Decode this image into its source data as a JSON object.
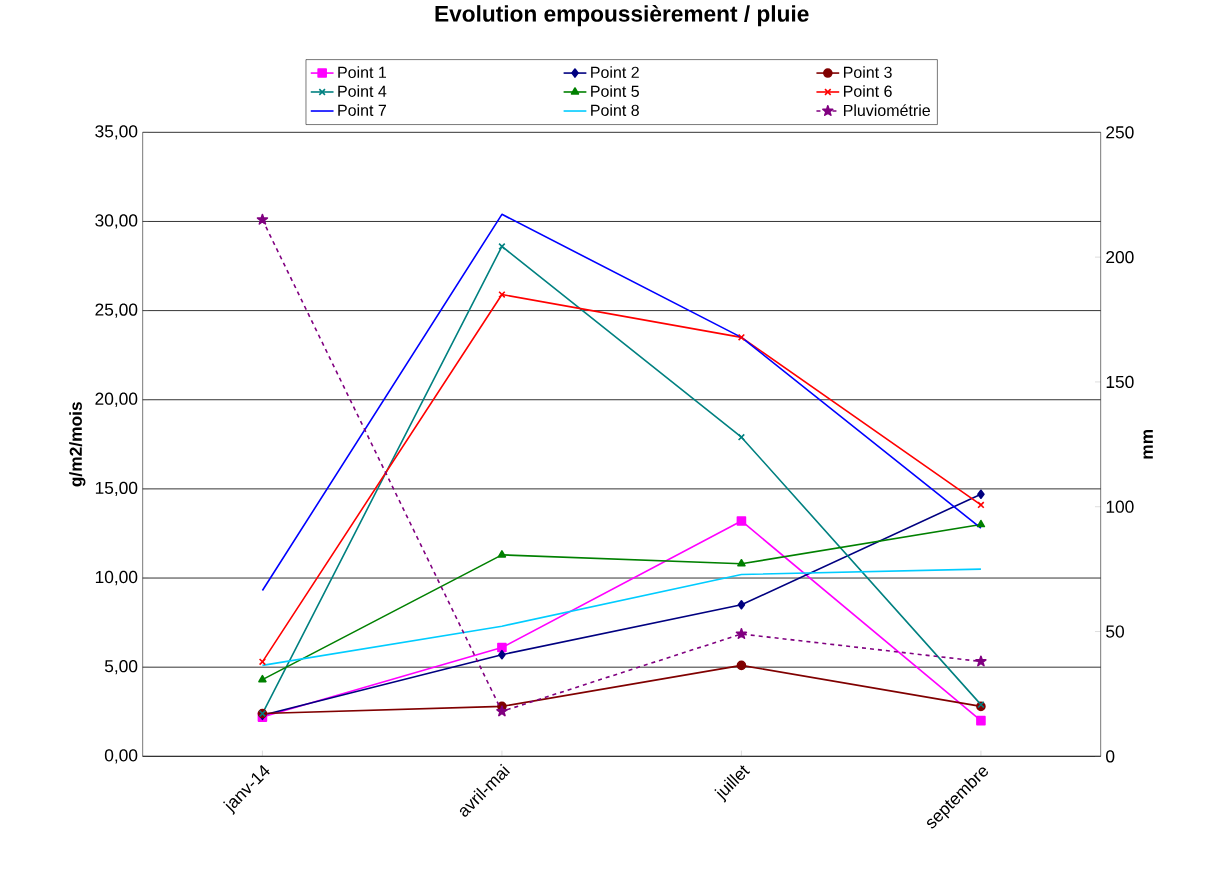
{
  "chart_data": {
    "type": "line",
    "title": "Evolution empoussièrement / pluie",
    "ylabel": "g/m2/mois",
    "y2label": "mm",
    "categories": [
      "janv-14",
      "avril-mai",
      "juillet",
      "septembre"
    ],
    "series": [
      {
        "name": "Point 1",
        "color": "#ff00ff",
        "marker": "square",
        "values": [
          2.2,
          6.1,
          13.2,
          2.0
        ]
      },
      {
        "name": "Point 2",
        "color": "#000080",
        "marker": "diamond",
        "values": [
          2.3,
          5.7,
          8.5,
          14.7
        ]
      },
      {
        "name": "Point 3",
        "color": "#800000",
        "marker": "circle",
        "values": [
          2.4,
          2.8,
          5.1,
          2.8
        ]
      },
      {
        "name": "Point 4",
        "color": "#008080",
        "marker": "cross",
        "values": [
          2.4,
          28.6,
          17.9,
          2.9
        ]
      },
      {
        "name": "Point 5",
        "color": "#008000",
        "marker": "triangle",
        "values": [
          4.3,
          11.3,
          10.8,
          13.0
        ]
      },
      {
        "name": "Point 6",
        "color": "#ff0000",
        "marker": "cross",
        "values": [
          5.3,
          25.9,
          23.5,
          14.1
        ]
      },
      {
        "name": "Point 7",
        "color": "#0000ff",
        "values": [
          9.3,
          30.4,
          23.5,
          12.8
        ]
      },
      {
        "name": "Point 8",
        "color": "#00ccff",
        "values": [
          5.1,
          7.3,
          10.2,
          10.5
        ]
      },
      {
        "name": "Pluviométrie",
        "color": "#800080",
        "marker": "star",
        "line_style": "dashed",
        "axis": "y2",
        "values": [
          215,
          18,
          49,
          38
        ]
      }
    ],
    "ylim": [
      0,
      35
    ],
    "yticks": [
      {
        "value": 0,
        "label": "0,00"
      },
      {
        "value": 5,
        "label": "5,00"
      },
      {
        "value": 10,
        "label": "10,00"
      },
      {
        "value": 15,
        "label": "15,00"
      },
      {
        "value": 20,
        "label": "20,00"
      },
      {
        "value": 25,
        "label": "25,00"
      },
      {
        "value": 30,
        "label": "30,00"
      },
      {
        "value": 35,
        "label": "35,00"
      }
    ],
    "y2lim": [
      0,
      250
    ],
    "y2ticks": [
      0,
      50,
      100,
      150,
      200,
      250
    ],
    "grid": "y",
    "legend": "top"
  }
}
